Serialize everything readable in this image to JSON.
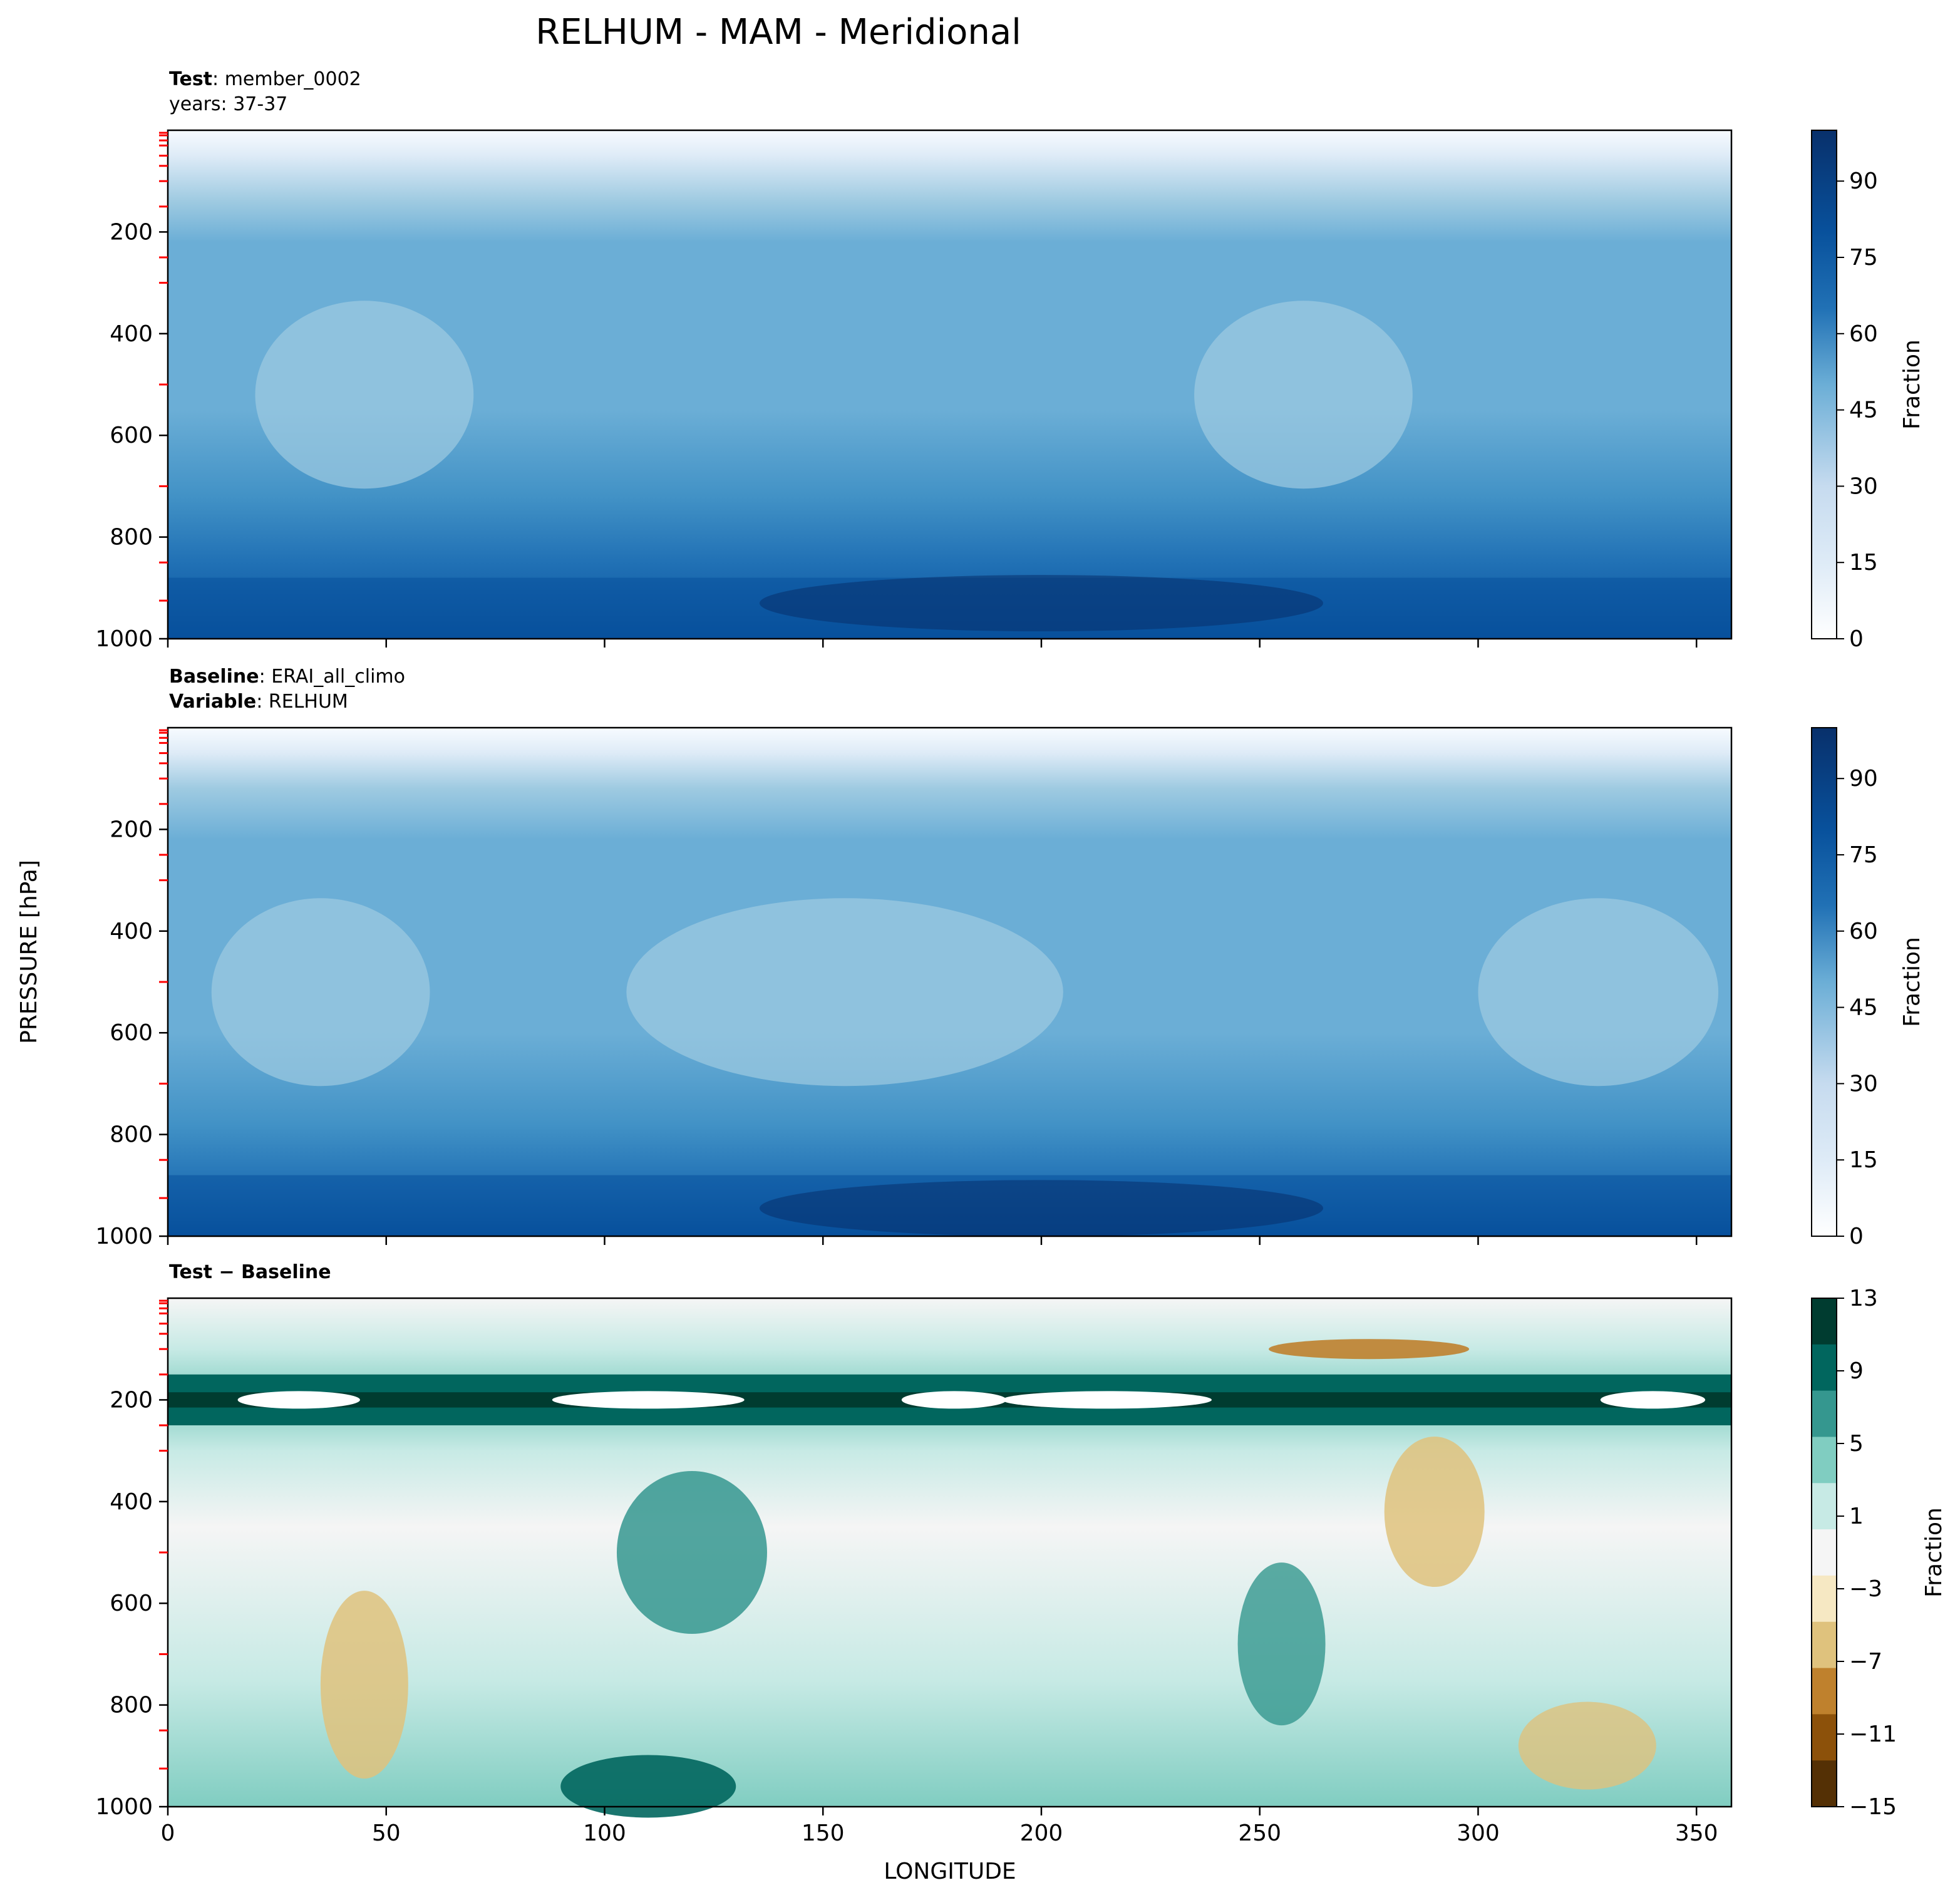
{
  "figure": {
    "title": "RELHUM - MAM - Meridional",
    "shared_ylabel": "PRESSURE [hPa]",
    "shared_xlabel": "LONGITUDE"
  },
  "panels": [
    {
      "id": "test",
      "header_lines": [
        {
          "bold": "Test",
          "sep": ": ",
          "text": "member_0002"
        },
        {
          "bold": "",
          "sep": "",
          "text": "years: 37-37"
        }
      ],
      "colorbar": {
        "label": "Fraction",
        "ticks": [
          "0",
          "15",
          "30",
          "45",
          "60",
          "75",
          "90"
        ],
        "range": [
          0,
          100
        ],
        "cmap": "Blues"
      }
    },
    {
      "id": "baseline",
      "header_lines": [
        {
          "bold": "Baseline",
          "sep": ": ",
          "text": "ERAI_all_climo"
        },
        {
          "bold": "Variable",
          "sep": ": ",
          "text": "RELHUM"
        }
      ],
      "colorbar": {
        "label": "Fraction",
        "ticks": [
          "0",
          "15",
          "30",
          "45",
          "60",
          "75",
          "90"
        ],
        "range": [
          0,
          100
        ],
        "cmap": "Blues"
      }
    },
    {
      "id": "diff",
      "header_lines": [
        {
          "bold": "Test − Baseline",
          "sep": "",
          "text": ""
        }
      ],
      "colorbar": {
        "label": "Fraction",
        "ticks": [
          "13",
          "9",
          "5",
          "1",
          "−3",
          "−7",
          "−11",
          "−15"
        ],
        "range": [
          -15,
          13
        ],
        "cmap": "BrBG"
      }
    }
  ],
  "colors": {
    "blues": [
      "#f7fbff",
      "#deebf7",
      "#c6dbef",
      "#9ecae1",
      "#6baed6",
      "#4292c6",
      "#2171b5",
      "#08519c",
      "#08306b"
    ],
    "brbg": [
      "#543005",
      "#8c510a",
      "#bf812d",
      "#dfc27d",
      "#f6e8c3",
      "#f5f5f5",
      "#c7eae5",
      "#80cdc1",
      "#35978f",
      "#01665e",
      "#003c30"
    ],
    "sublevel_ticks": "#ff0000"
  },
  "chart_data": [
    {
      "type": "contour",
      "title": "Test: member_0002",
      "xlabel": "LONGITUDE",
      "ylabel": "PRESSURE [hPa]",
      "xlim": [
        0,
        358
      ],
      "ylim": [
        1000,
        0
      ],
      "xticks": [
        0,
        50,
        100,
        150,
        200,
        250,
        300,
        350
      ],
      "yticks": [
        200,
        400,
        600,
        800,
        1000
      ],
      "z_units": "Fraction",
      "z_range": [
        0,
        100
      ],
      "features": [
        {
          "p": 0,
          "value": 0,
          "note": "near zero above ~60 hPa"
        },
        {
          "p": 250,
          "value": 55
        },
        {
          "p": 500,
          "value": 40
        },
        {
          "p": 950,
          "value": 85
        }
      ]
    },
    {
      "type": "contour",
      "title": "Baseline: ERAI_all_climo",
      "xlabel": "LONGITUDE",
      "ylabel": "PRESSURE [hPa]",
      "xlim": [
        0,
        358
      ],
      "ylim": [
        1000,
        0
      ],
      "xticks": [
        0,
        50,
        100,
        150,
        200,
        250,
        300,
        350
      ],
      "yticks": [
        200,
        400,
        600,
        800,
        1000
      ],
      "z_units": "Fraction",
      "z_range": [
        0,
        100
      ],
      "features": [
        {
          "p": 0,
          "value": 0
        },
        {
          "p": 300,
          "value": 52
        },
        {
          "p": 550,
          "value": 38
        },
        {
          "p": 960,
          "value": 82
        }
      ]
    },
    {
      "type": "contour",
      "title": "Test − Baseline",
      "xlabel": "LONGITUDE",
      "ylabel": "PRESSURE [hPa]",
      "xlim": [
        0,
        358
      ],
      "ylim": [
        1000,
        0
      ],
      "xticks": [
        0,
        50,
        100,
        150,
        200,
        250,
        300,
        350
      ],
      "yticks": [
        200,
        400,
        600,
        800,
        1000
      ],
      "z_units": "Fraction",
      "z_range": [
        -15,
        13
      ],
      "features": [
        {
          "lon": 180,
          "p": 200,
          "value": 13,
          "note": "strong positive band near 200 hPa"
        },
        {
          "lon": 120,
          "p": 500,
          "value": 8
        },
        {
          "lon": 45,
          "p": 750,
          "value": -4
        },
        {
          "lon": 290,
          "p": 400,
          "value": -5
        },
        {
          "lon": 275,
          "p": 100,
          "value": -8
        },
        {
          "lon": 110,
          "p": 960,
          "value": 11
        }
      ]
    }
  ]
}
